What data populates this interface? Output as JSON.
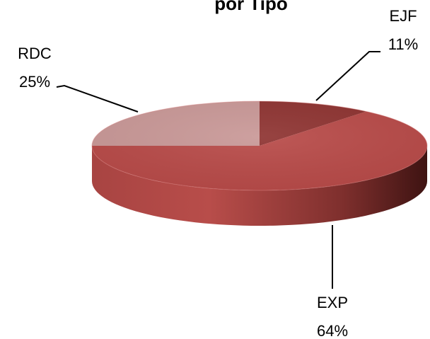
{
  "chart_data": {
    "type": "pie",
    "title": "por Tipo",
    "style": "3d",
    "slices": [
      {
        "name": "EJF",
        "value": 11,
        "label": "11%",
        "color": "#8e3331"
      },
      {
        "name": "EXP",
        "value": 64,
        "label": "64%",
        "color": "#b84a48"
      },
      {
        "name": "RDC",
        "value": 25,
        "label": "25%",
        "color": "#c99897"
      }
    ],
    "legend": "none"
  }
}
